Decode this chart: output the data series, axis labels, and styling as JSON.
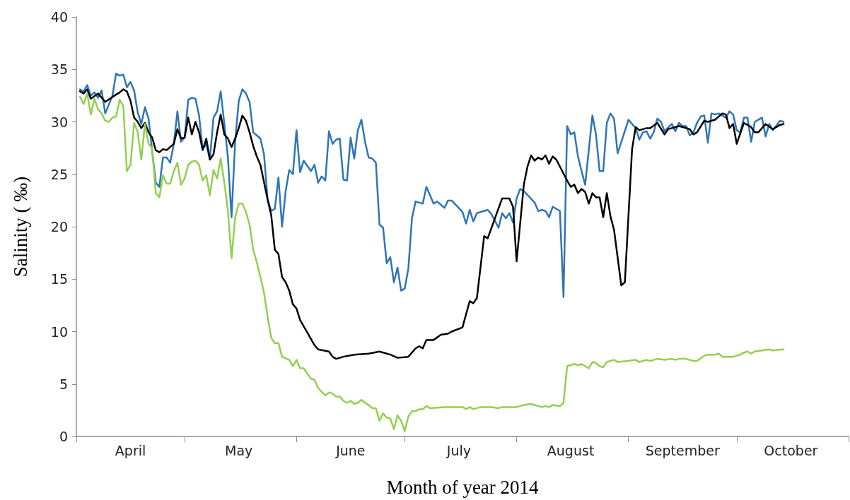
{
  "chart_data": {
    "type": "line",
    "xlabel": "Month of year 2014",
    "ylabel": "Salinity ( ‰)",
    "xlim": [
      "2014-04-01",
      "2014-11-01"
    ],
    "xticks": [
      {
        "value": "2014-04-01",
        "label": null
      },
      {
        "value": "2014-04-16",
        "label": "April"
      },
      {
        "value": "2014-05-01",
        "label": null
      },
      {
        "value": "2014-05-16",
        "label": "May"
      },
      {
        "value": "2014-06-01",
        "label": null
      },
      {
        "value": "2014-06-16",
        "label": "June"
      },
      {
        "value": "2014-07-01",
        "label": null
      },
      {
        "value": "2014-07-16",
        "label": "July"
      },
      {
        "value": "2014-08-01",
        "label": null
      },
      {
        "value": "2014-08-16",
        "label": "August"
      },
      {
        "value": "2014-09-01",
        "label": null
      },
      {
        "value": "2014-09-16",
        "label": "September"
      },
      {
        "value": "2014-10-01",
        "label": null
      },
      {
        "value": "2014-10-16",
        "label": "October"
      },
      {
        "value": "2014-11-01",
        "label": null
      }
    ],
    "ylim": [
      0,
      40
    ],
    "yticks": [
      0,
      5,
      10,
      15,
      20,
      25,
      30,
      35,
      40
    ],
    "marker": "none",
    "line_style": "solid",
    "series": [
      {
        "color": "#2e75b6",
        "x": [
          "2014-04-02",
          "2014-04-03",
          "2014-04-04",
          "2014-04-05",
          "2014-04-06",
          "2014-04-07",
          "2014-04-08",
          "2014-04-09",
          "2014-04-11",
          "2014-04-12",
          "2014-04-13",
          "2014-04-14",
          "2014-04-15",
          "2014-04-16",
          "2014-04-17",
          "2014-04-18",
          "2014-04-19",
          "2014-04-20",
          "2014-04-21",
          "2014-04-23",
          "2014-04-24",
          "2014-04-25",
          "2014-04-26",
          "2014-04-27",
          "2014-04-28",
          "2014-04-29",
          "2014-04-30",
          "2014-05-01",
          "2014-05-02",
          "2014-05-03",
          "2014-05-04",
          "2014-05-05",
          "2014-05-06",
          "2014-05-07",
          "2014-05-08",
          "2014-05-09",
          "2014-05-10",
          "2014-05-11",
          "2014-05-12",
          "2014-05-13",
          "2014-05-14",
          "2014-05-15",
          "2014-05-16",
          "2014-05-17",
          "2014-05-18",
          "2014-05-19",
          "2014-05-20",
          "2014-05-21",
          "2014-05-22",
          "2014-05-23",
          "2014-05-24",
          "2014-05-25",
          "2014-05-26",
          "2014-05-27",
          "2014-05-28",
          "2014-05-29",
          "2014-05-30",
          "2014-05-31",
          "2014-06-01",
          "2014-06-02",
          "2014-06-03",
          "2014-06-05",
          "2014-06-06",
          "2014-06-07",
          "2014-06-08",
          "2014-06-09",
          "2014-06-10",
          "2014-06-11",
          "2014-06-12",
          "2014-06-13",
          "2014-06-14",
          "2014-06-15",
          "2014-06-16",
          "2014-06-17",
          "2014-06-18",
          "2014-06-19",
          "2014-06-20",
          "2014-06-21",
          "2014-06-22",
          "2014-06-23",
          "2014-06-24",
          "2014-06-25",
          "2014-06-26",
          "2014-06-27",
          "2014-06-28",
          "2014-06-29",
          "2014-06-30",
          "2014-07-01",
          "2014-07-02",
          "2014-07-03",
          "2014-07-04",
          "2014-07-06",
          "2014-07-07",
          "2014-07-09",
          "2014-07-10",
          "2014-07-11",
          "2014-07-12",
          "2014-07-13",
          "2014-07-14",
          "2014-07-17",
          "2014-07-18",
          "2014-07-19",
          "2014-07-20",
          "2014-07-21",
          "2014-07-24",
          "2014-07-25",
          "2014-07-27",
          "2014-07-28",
          "2014-07-29",
          "2014-07-30",
          "2014-07-31",
          "2014-08-01",
          "2014-08-02",
          "2014-08-03",
          "2014-08-06",
          "2014-08-07",
          "2014-08-08",
          "2014-08-09",
          "2014-08-10",
          "2014-08-11",
          "2014-08-13",
          "2014-08-14",
          "2014-08-15",
          "2014-08-16",
          "2014-08-17",
          "2014-08-18",
          "2014-08-19",
          "2014-08-20",
          "2014-08-21",
          "2014-08-22",
          "2014-08-23",
          "2014-08-24",
          "2014-08-25",
          "2014-08-26",
          "2014-08-27",
          "2014-08-28",
          "2014-08-29",
          "2014-09-01",
          "2014-09-03",
          "2014-09-04",
          "2014-09-05",
          "2014-09-06",
          "2014-09-07",
          "2014-09-08",
          "2014-09-09",
          "2014-09-10",
          "2014-09-11",
          "2014-09-13",
          "2014-09-14",
          "2014-09-15",
          "2014-09-16",
          "2014-09-17",
          "2014-09-18",
          "2014-09-19",
          "2014-09-20",
          "2014-09-21",
          "2014-09-22",
          "2014-09-23",
          "2014-09-24",
          "2014-09-25",
          "2014-09-26",
          "2014-09-27",
          "2014-09-28",
          "2014-09-29",
          "2014-09-30",
          "2014-10-01",
          "2014-10-02",
          "2014-10-03",
          "2014-10-04",
          "2014-10-05",
          "2014-10-06",
          "2014-10-08",
          "2014-10-09",
          "2014-10-10",
          "2014-10-11",
          "2014-10-13",
          "2014-10-14"
        ],
        "values": [
          33.1,
          32.9,
          33.5,
          32.5,
          32.8,
          32.3,
          33.0,
          30.8,
          32.5,
          34.6,
          34.4,
          34.5,
          33.3,
          33.8,
          33.0,
          30.9,
          29.8,
          31.4,
          30.3,
          24.2,
          23.8,
          26.6,
          26.6,
          26.1,
          27.9,
          31.0,
          28.1,
          28.5,
          32.1,
          32.3,
          32.2,
          30.6,
          27.4,
          27.9,
          26.4,
          30.4,
          31.0,
          32.9,
          29.8,
          26.6,
          20.9,
          28.1,
          32.0,
          33.1,
          32.7,
          31.9,
          29.0,
          28.7,
          28.4,
          26.9,
          22.6,
          21.5,
          21.7,
          24.7,
          20.0,
          23.4,
          25.4,
          25.0,
          29.2,
          25.2,
          26.3,
          25.3,
          25.9,
          24.2,
          24.8,
          24.4,
          29.1,
          27.9,
          28.3,
          28.4,
          24.5,
          24.4,
          28.5,
          26.5,
          29.2,
          30.2,
          28.1,
          26.6,
          26.5,
          26.1,
          20.2,
          19.9,
          16.5,
          17.1,
          14.7,
          16.1,
          13.9,
          14.1,
          16.0,
          20.8,
          22.4,
          22.2,
          23.8,
          22.2,
          22.4,
          22.1,
          21.8,
          22.5,
          22.5,
          21.4,
          20.3,
          21.6,
          20.5,
          21.3,
          21.6,
          21.2,
          19.9,
          21.3,
          20.8,
          21.3,
          20.4,
          22.7,
          23.6,
          23.4,
          22.3,
          21.5,
          21.6,
          21.5,
          20.9,
          21.9,
          21.5,
          13.3,
          29.6,
          28.8,
          29.0,
          26.7,
          25.3,
          24.0,
          27.3,
          30.6,
          28.8,
          25.3,
          25.3,
          29.9,
          30.8,
          30.3,
          27.0,
          30.2,
          29.4,
          28.3,
          29.0,
          29.1,
          28.4,
          29.0,
          30.3,
          30.0,
          29.1,
          29.8,
          29.1,
          29.9,
          29.6,
          29.6,
          28.7,
          29.0,
          29.9,
          30.5,
          30.6,
          28.0,
          30.8,
          30.7,
          30.8,
          30.6,
          30.4,
          31.0,
          30.7,
          29.2,
          29.0,
          30.4,
          30.4,
          28.1,
          30.0,
          30.4,
          28.6,
          29.8,
          29.2,
          30.1,
          30.0
        ]
      },
      {
        "color": "#000000",
        "x": [
          "2014-04-02",
          "2014-04-03",
          "2014-04-04",
          "2014-04-05",
          "2014-04-07",
          "2014-04-09",
          "2014-04-12",
          "2014-04-13",
          "2014-04-14",
          "2014-04-15",
          "2014-04-16",
          "2014-04-17",
          "2014-04-18",
          "2014-04-19",
          "2014-04-20",
          "2014-04-21",
          "2014-04-22",
          "2014-04-23",
          "2014-04-24",
          "2014-04-25",
          "2014-04-26",
          "2014-04-27",
          "2014-04-28",
          "2014-04-29",
          "2014-04-30",
          "2014-05-01",
          "2014-05-02",
          "2014-05-03",
          "2014-05-04",
          "2014-05-05",
          "2014-05-06",
          "2014-05-07",
          "2014-05-08",
          "2014-05-09",
          "2014-05-10",
          "2014-05-11",
          "2014-05-12",
          "2014-05-13",
          "2014-05-14",
          "2014-05-15",
          "2014-05-16",
          "2014-05-17",
          "2014-05-18",
          "2014-05-19",
          "2014-05-20",
          "2014-05-21",
          "2014-05-22",
          "2014-05-24",
          "2014-05-25",
          "2014-05-26",
          "2014-05-27",
          "2014-05-28",
          "2014-05-29",
          "2014-05-30",
          "2014-05-31",
          "2014-06-01",
          "2014-06-02",
          "2014-06-04",
          "2014-06-06",
          "2014-06-07",
          "2014-06-10",
          "2014-06-11",
          "2014-06-12",
          "2014-06-14",
          "2014-06-17",
          "2014-06-21",
          "2014-06-24",
          "2014-06-27",
          "2014-06-29",
          "2014-07-02",
          "2014-07-04",
          "2014-07-05",
          "2014-07-06",
          "2014-07-07",
          "2014-07-09",
          "2014-07-11",
          "2014-07-13",
          "2014-07-14",
          "2014-07-17",
          "2014-07-19",
          "2014-07-20",
          "2014-07-21",
          "2014-07-23",
          "2014-07-24",
          "2014-07-28",
          "2014-07-30",
          "2014-07-31",
          "2014-08-01",
          "2014-08-03",
          "2014-08-04",
          "2014-08-05",
          "2014-08-06",
          "2014-08-07",
          "2014-08-08",
          "2014-08-09",
          "2014-08-10",
          "2014-08-11",
          "2014-08-12",
          "2014-08-15",
          "2014-08-16",
          "2014-08-17",
          "2014-08-18",
          "2014-08-19",
          "2014-08-20",
          "2014-08-21",
          "2014-08-22",
          "2014-08-23",
          "2014-08-24",
          "2014-08-25",
          "2014-08-26",
          "2014-08-27",
          "2014-08-28",
          "2014-08-30",
          "2014-08-31",
          "2014-09-02",
          "2014-09-03",
          "2014-09-04",
          "2014-09-06",
          "2014-09-07",
          "2014-09-09",
          "2014-09-11",
          "2014-09-12",
          "2014-09-15",
          "2014-09-18",
          "2014-09-19",
          "2014-09-20",
          "2014-09-22",
          "2014-09-23",
          "2014-09-25",
          "2014-09-27",
          "2014-09-28",
          "2014-09-29",
          "2014-09-30",
          "2014-10-01",
          "2014-10-03",
          "2014-10-05",
          "2014-10-06",
          "2014-10-07",
          "2014-10-09",
          "2014-10-11",
          "2014-10-13",
          "2014-10-14"
        ],
        "values": [
          32.9,
          32.7,
          33.1,
          32.2,
          32.7,
          31.9,
          32.6,
          32.8,
          33.1,
          32.9,
          32.0,
          30.4,
          30.0,
          29.4,
          29.9,
          29.0,
          28.5,
          27.3,
          27.1,
          27.4,
          27.3,
          27.6,
          27.9,
          29.3,
          28.4,
          28.5,
          30.4,
          28.8,
          30.0,
          29.0,
          27.3,
          28.4,
          26.4,
          26.9,
          29.0,
          30.7,
          28.8,
          28.4,
          27.6,
          28.4,
          29.4,
          30.6,
          30.1,
          29.0,
          27.7,
          26.7,
          25.9,
          22.6,
          21.1,
          17.8,
          17.4,
          15.2,
          14.7,
          13.9,
          12.6,
          12.2,
          11.1,
          9.9,
          8.7,
          8.3,
          8.1,
          7.6,
          7.4,
          7.6,
          7.8,
          7.9,
          8.1,
          7.8,
          7.5,
          7.6,
          8.4,
          8.6,
          8.4,
          9.2,
          9.2,
          9.7,
          9.8,
          10.0,
          10.4,
          12.9,
          12.7,
          13.2,
          19.1,
          18.9,
          22.7,
          22.7,
          21.9,
          16.7,
          24.0,
          25.7,
          26.8,
          26.3,
          26.6,
          26.4,
          26.8,
          26.0,
          26.7,
          26.4,
          24.4,
          23.8,
          24.0,
          23.2,
          23.6,
          23.3,
          22.2,
          23.2,
          22.8,
          22.8,
          20.9,
          23.2,
          21.0,
          19.7,
          14.4,
          14.7,
          27.4,
          29.5,
          29.2,
          29.4,
          29.4,
          29.9,
          28.8,
          29.3,
          29.6,
          29.3,
          28.8,
          29.0,
          30.1,
          30.0,
          30.2,
          30.8,
          30.7,
          29.4,
          29.8,
          27.9,
          29.9,
          29.5,
          29.0,
          29.0,
          29.8,
          29.3,
          29.7,
          29.8
        ]
      },
      {
        "color": "#92d050",
        "x": [
          "2014-04-02",
          "2014-04-03",
          "2014-04-04",
          "2014-04-05",
          "2014-04-06",
          "2014-04-07",
          "2014-04-08",
          "2014-04-09",
          "2014-04-10",
          "2014-04-11",
          "2014-04-12",
          "2014-04-13",
          "2014-04-14",
          "2014-04-15",
          "2014-04-16",
          "2014-04-17",
          "2014-04-18",
          "2014-04-19",
          "2014-04-20",
          "2014-04-21",
          "2014-04-22",
          "2014-04-23",
          "2014-04-24",
          "2014-04-25",
          "2014-04-26",
          "2014-04-27",
          "2014-04-28",
          "2014-04-29",
          "2014-04-30",
          "2014-05-01",
          "2014-05-02",
          "2014-05-03",
          "2014-05-04",
          "2014-05-05",
          "2014-05-06",
          "2014-05-07",
          "2014-05-08",
          "2014-05-09",
          "2014-05-10",
          "2014-05-11",
          "2014-05-12",
          "2014-05-13",
          "2014-05-14",
          "2014-05-15",
          "2014-05-16",
          "2014-05-17",
          "2014-05-18",
          "2014-05-19",
          "2014-05-20",
          "2014-05-21",
          "2014-05-22",
          "2014-05-23",
          "2014-05-24",
          "2014-05-25",
          "2014-05-26",
          "2014-05-27",
          "2014-05-28",
          "2014-05-30",
          "2014-05-31",
          "2014-06-01",
          "2014-06-02",
          "2014-06-03",
          "2014-06-05",
          "2014-06-06",
          "2014-06-07",
          "2014-06-09",
          "2014-06-10",
          "2014-06-11",
          "2014-06-12",
          "2014-06-13",
          "2014-06-14",
          "2014-06-15",
          "2014-06-16",
          "2014-06-17",
          "2014-06-18",
          "2014-06-19",
          "2014-06-20",
          "2014-06-21",
          "2014-06-22",
          "2014-06-23",
          "2014-06-24",
          "2014-06-25",
          "2014-06-26",
          "2014-06-27",
          "2014-06-28",
          "2014-06-29",
          "2014-06-30",
          "2014-07-01",
          "2014-07-02",
          "2014-07-03",
          "2014-07-04",
          "2014-07-05",
          "2014-07-06",
          "2014-07-07",
          "2014-07-08",
          "2014-07-12",
          "2014-07-14",
          "2014-07-17",
          "2014-07-18",
          "2014-07-19",
          "2014-07-20",
          "2014-07-22",
          "2014-07-25",
          "2014-07-27",
          "2014-07-28",
          "2014-08-01",
          "2014-08-03",
          "2014-08-05",
          "2014-08-08",
          "2014-08-09",
          "2014-08-10",
          "2014-08-11",
          "2014-08-13",
          "2014-08-14",
          "2014-08-15",
          "2014-08-16",
          "2014-08-17",
          "2014-08-18",
          "2014-08-19",
          "2014-08-21",
          "2014-08-22",
          "2014-08-23",
          "2014-08-24",
          "2014-08-25",
          "2014-08-26",
          "2014-08-28",
          "2014-08-29",
          "2014-09-01",
          "2014-09-03",
          "2014-09-04",
          "2014-09-06",
          "2014-09-07",
          "2014-09-09",
          "2014-09-11",
          "2014-09-13",
          "2014-09-14",
          "2014-09-15",
          "2014-09-17",
          "2014-09-19",
          "2014-09-20",
          "2014-09-22",
          "2014-09-23",
          "2014-09-25",
          "2014-09-26",
          "2014-09-27",
          "2014-09-29",
          "2014-09-30",
          "2014-10-02",
          "2014-10-03",
          "2014-10-04",
          "2014-10-05",
          "2014-10-06",
          "2014-10-08",
          "2014-10-10",
          "2014-10-11",
          "2014-10-14"
        ],
        "values": [
          32.4,
          31.7,
          32.7,
          30.7,
          32.2,
          31.2,
          30.8,
          30.1,
          30.0,
          30.4,
          30.5,
          32.1,
          31.5,
          25.3,
          25.9,
          29.9,
          29.0,
          26.4,
          29.8,
          27.9,
          27.5,
          23.2,
          22.8,
          24.9,
          24.1,
          24.1,
          25.3,
          26.1,
          24.0,
          24.6,
          25.9,
          26.2,
          26.3,
          25.9,
          24.4,
          24.9,
          23.0,
          25.4,
          24.6,
          26.5,
          24.2,
          21.5,
          17.0,
          20.9,
          22.2,
          22.2,
          21.4,
          20.2,
          17.8,
          16.6,
          15.2,
          13.7,
          11.4,
          9.4,
          8.9,
          8.9,
          7.6,
          7.3,
          6.7,
          7.3,
          6.5,
          6.5,
          5.5,
          5.4,
          4.6,
          3.9,
          4.2,
          4.1,
          3.8,
          3.8,
          3.4,
          3.2,
          3.4,
          3.1,
          3.2,
          3.5,
          3.2,
          3.0,
          2.7,
          2.7,
          1.5,
          2.2,
          1.8,
          1.7,
          0.7,
          2.0,
          1.5,
          0.5,
          1.9,
          2.4,
          2.4,
          2.6,
          2.6,
          2.9,
          2.7,
          2.8,
          2.8,
          2.8,
          2.6,
          2.8,
          2.6,
          2.8,
          2.8,
          2.7,
          2.8,
          2.8,
          3.0,
          3.1,
          2.8,
          2.9,
          2.8,
          3.0,
          2.9,
          3.2,
          6.7,
          6.8,
          6.9,
          6.8,
          6.9,
          6.5,
          7.1,
          7.0,
          6.7,
          6.6,
          7.1,
          7.3,
          7.1,
          7.2,
          7.3,
          7.1,
          7.3,
          7.2,
          7.4,
          7.3,
          7.4,
          7.3,
          7.4,
          7.4,
          7.2,
          7.2,
          7.7,
          7.8,
          7.8,
          7.9,
          7.6,
          7.6,
          7.6,
          7.8,
          8.0,
          8.1,
          7.9,
          8.1,
          8.2,
          8.3,
          8.2,
          8.3
        ]
      }
    ]
  }
}
